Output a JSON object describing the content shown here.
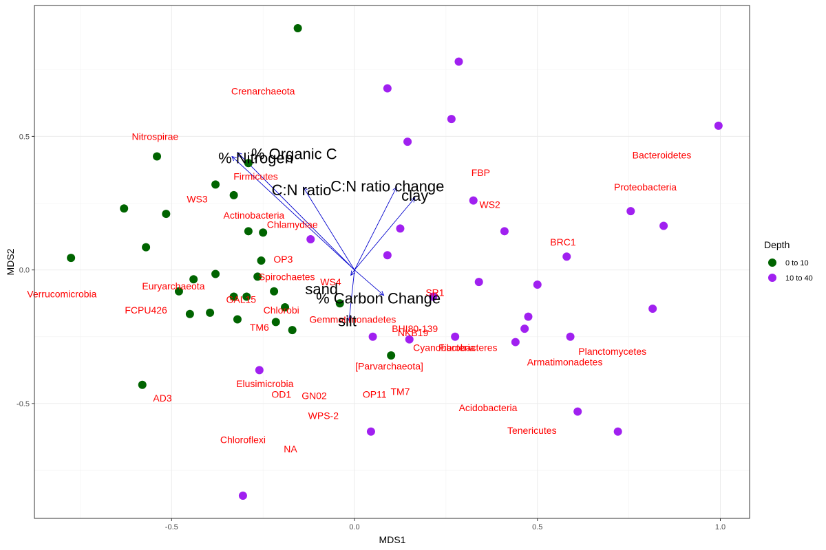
{
  "chart_data": {
    "type": "scatter",
    "xlabel": "MDS1",
    "ylabel": "MDS2",
    "xlim": [
      -0.875,
      1.08
    ],
    "ylim": [
      -0.93,
      0.99
    ],
    "x_ticks": [
      -0.5,
      0.0,
      0.5,
      1.0
    ],
    "x_tick_labels": [
      "-0.5",
      "0.0",
      "0.5",
      "1.0"
    ],
    "y_ticks": [
      -0.5,
      0.0,
      0.5
    ],
    "y_tick_labels": [
      "-0.5",
      "0.0",
      "0.5"
    ],
    "grid": true,
    "legend": {
      "title": "Depth",
      "placement": "right",
      "entries": [
        {
          "label": "0 to 10",
          "color": "#006400"
        },
        {
          "label": "10 to 40",
          "color": "#A020F0"
        }
      ]
    },
    "series": [
      {
        "name": "0 to 10",
        "color": "#006400",
        "points": [
          [
            -0.155,
            0.905
          ],
          [
            -0.54,
            0.425
          ],
          [
            -0.29,
            0.4
          ],
          [
            -0.38,
            0.32
          ],
          [
            -0.33,
            0.28
          ],
          [
            -0.63,
            0.23
          ],
          [
            -0.515,
            0.21
          ],
          [
            -0.29,
            0.145
          ],
          [
            -0.25,
            0.14
          ],
          [
            -0.57,
            0.085
          ],
          [
            -0.775,
            0.045
          ],
          [
            -0.255,
            0.035
          ],
          [
            -0.38,
            -0.015
          ],
          [
            -0.265,
            -0.025
          ],
          [
            -0.44,
            -0.035
          ],
          [
            -0.48,
            -0.08
          ],
          [
            -0.22,
            -0.08
          ],
          [
            -0.33,
            -0.1
          ],
          [
            -0.295,
            -0.1
          ],
          [
            -0.19,
            -0.14
          ],
          [
            -0.04,
            -0.125
          ],
          [
            -0.45,
            -0.165
          ],
          [
            -0.395,
            -0.16
          ],
          [
            -0.32,
            -0.185
          ],
          [
            -0.215,
            -0.195
          ],
          [
            -0.17,
            -0.225
          ],
          [
            0.1,
            -0.32
          ],
          [
            -0.58,
            -0.43
          ]
        ]
      },
      {
        "name": "10 to 40",
        "color": "#A020F0",
        "points": [
          [
            0.285,
            0.78
          ],
          [
            0.09,
            0.68
          ],
          [
            0.265,
            0.565
          ],
          [
            0.145,
            0.48
          ],
          [
            0.995,
            0.54
          ],
          [
            0.325,
            0.26
          ],
          [
            0.755,
            0.22
          ],
          [
            0.845,
            0.165
          ],
          [
            0.125,
            0.155
          ],
          [
            0.41,
            0.145
          ],
          [
            -0.12,
            0.115
          ],
          [
            0.09,
            0.055
          ],
          [
            0.58,
            0.05
          ],
          [
            0.34,
            -0.045
          ],
          [
            0.5,
            -0.055
          ],
          [
            0.215,
            -0.1
          ],
          [
            0.475,
            -0.175
          ],
          [
            0.815,
            -0.145
          ],
          [
            0.465,
            -0.22
          ],
          [
            0.05,
            -0.25
          ],
          [
            0.275,
            -0.25
          ],
          [
            0.15,
            -0.26
          ],
          [
            0.44,
            -0.27
          ],
          [
            0.59,
            -0.25
          ],
          [
            -0.26,
            -0.375
          ],
          [
            0.045,
            -0.605
          ],
          [
            0.61,
            -0.53
          ],
          [
            0.72,
            -0.605
          ],
          [
            -0.305,
            -0.845
          ]
        ]
      }
    ],
    "taxa_labels": [
      {
        "text": "Crenarchaeota",
        "x": -0.25,
        "y": 0.67
      },
      {
        "text": "Nitrospirae",
        "x": -0.545,
        "y": 0.5
      },
      {
        "text": "Bacteroidetes",
        "x": 0.84,
        "y": 0.43
      },
      {
        "text": "Firmicutes",
        "x": -0.27,
        "y": 0.35
      },
      {
        "text": "FBP",
        "x": 0.345,
        "y": 0.365
      },
      {
        "text": "Proteobacteria",
        "x": 0.795,
        "y": 0.31
      },
      {
        "text": "WS3",
        "x": -0.43,
        "y": 0.265
      },
      {
        "text": "WS2",
        "x": 0.37,
        "y": 0.245
      },
      {
        "text": "Actinobacteria",
        "x": -0.275,
        "y": 0.205
      },
      {
        "text": "Chlamydiae",
        "x": -0.17,
        "y": 0.17
      },
      {
        "text": "BRC1",
        "x": 0.57,
        "y": 0.105
      },
      {
        "text": "OP3",
        "x": -0.195,
        "y": 0.04
      },
      {
        "text": "Spirochaetes",
        "x": -0.185,
        "y": -0.025
      },
      {
        "text": "WS4",
        "x": -0.065,
        "y": -0.045
      },
      {
        "text": "Euryarchaeota",
        "x": -0.495,
        "y": -0.06
      },
      {
        "text": "Verrucomicrobia",
        "x": -0.8,
        "y": -0.09
      },
      {
        "text": "SR1",
        "x": 0.22,
        "y": -0.085
      },
      {
        "text": "GAL15",
        "x": -0.31,
        "y": -0.11
      },
      {
        "text": "FCPU426",
        "x": -0.57,
        "y": -0.15
      },
      {
        "text": "Chlorobi",
        "x": -0.2,
        "y": -0.15
      },
      {
        "text": "Gemmatimonadetes",
        "x": -0.005,
        "y": -0.185
      },
      {
        "text": "TM6",
        "x": -0.26,
        "y": -0.215
      },
      {
        "text": "BHI80-139",
        "x": 0.165,
        "y": -0.22
      },
      {
        "text": "NKB19",
        "x": 0.16,
        "y": -0.235
      },
      {
        "text": "Cyanobacteria",
        "x": 0.245,
        "y": -0.29
      },
      {
        "text": "Fibrobacteres",
        "x": 0.31,
        "y": -0.29
      },
      {
        "text": "Planctomycetes",
        "x": 0.705,
        "y": -0.305
      },
      {
        "text": "Armatimonadetes",
        "x": 0.575,
        "y": -0.345
      },
      {
        "text": "[Parvarchaeota]",
        "x": 0.095,
        "y": -0.36
      },
      {
        "text": "Elusimicrobia",
        "x": -0.245,
        "y": -0.425
      },
      {
        "text": "AD3",
        "x": -0.525,
        "y": -0.48
      },
      {
        "text": "OD1",
        "x": -0.2,
        "y": -0.465
      },
      {
        "text": "TM7",
        "x": 0.125,
        "y": -0.455
      },
      {
        "text": "OP11",
        "x": 0.055,
        "y": -0.465
      },
      {
        "text": "GN02",
        "x": -0.11,
        "y": -0.47
      },
      {
        "text": "Acidobacteria",
        "x": 0.365,
        "y": -0.515
      },
      {
        "text": "WPS-2",
        "x": -0.085,
        "y": -0.545
      },
      {
        "text": "Tenericutes",
        "x": 0.485,
        "y": -0.6
      },
      {
        "text": "Chloroflexi",
        "x": -0.305,
        "y": -0.635
      },
      {
        "text": "NA",
        "x": -0.175,
        "y": -0.67
      }
    ],
    "taxa_label_color": "#FF0000",
    "vector_color": "#0000CD",
    "vectors": [
      {
        "label": "% Organic C",
        "x": -0.32,
        "y": 0.44,
        "label_x": -0.165,
        "label_y": 0.435
      },
      {
        "label": "% Nitrogen",
        "x": -0.335,
        "y": 0.425,
        "label_x": -0.27,
        "label_y": 0.42
      },
      {
        "label": "C:N ratio",
        "x": -0.14,
        "y": 0.31,
        "label_x": -0.145,
        "label_y": 0.3
      },
      {
        "label": "C:N ratio change",
        "x": 0.115,
        "y": 0.31,
        "label_x": 0.09,
        "label_y": 0.315
      },
      {
        "label": "clay",
        "x": 0.165,
        "y": 0.27,
        "label_x": 0.165,
        "label_y": 0.28
      },
      {
        "label": "sand",
        "x": -0.01,
        "y": -0.02,
        "label_x": -0.09,
        "label_y": -0.07
      },
      {
        "label": "% Carbon Change",
        "x": 0.08,
        "y": -0.095,
        "label_x": 0.065,
        "label_y": -0.105
      },
      {
        "label": "silt",
        "x": -0.015,
        "y": -0.19,
        "label_x": -0.02,
        "label_y": -0.19
      }
    ]
  }
}
